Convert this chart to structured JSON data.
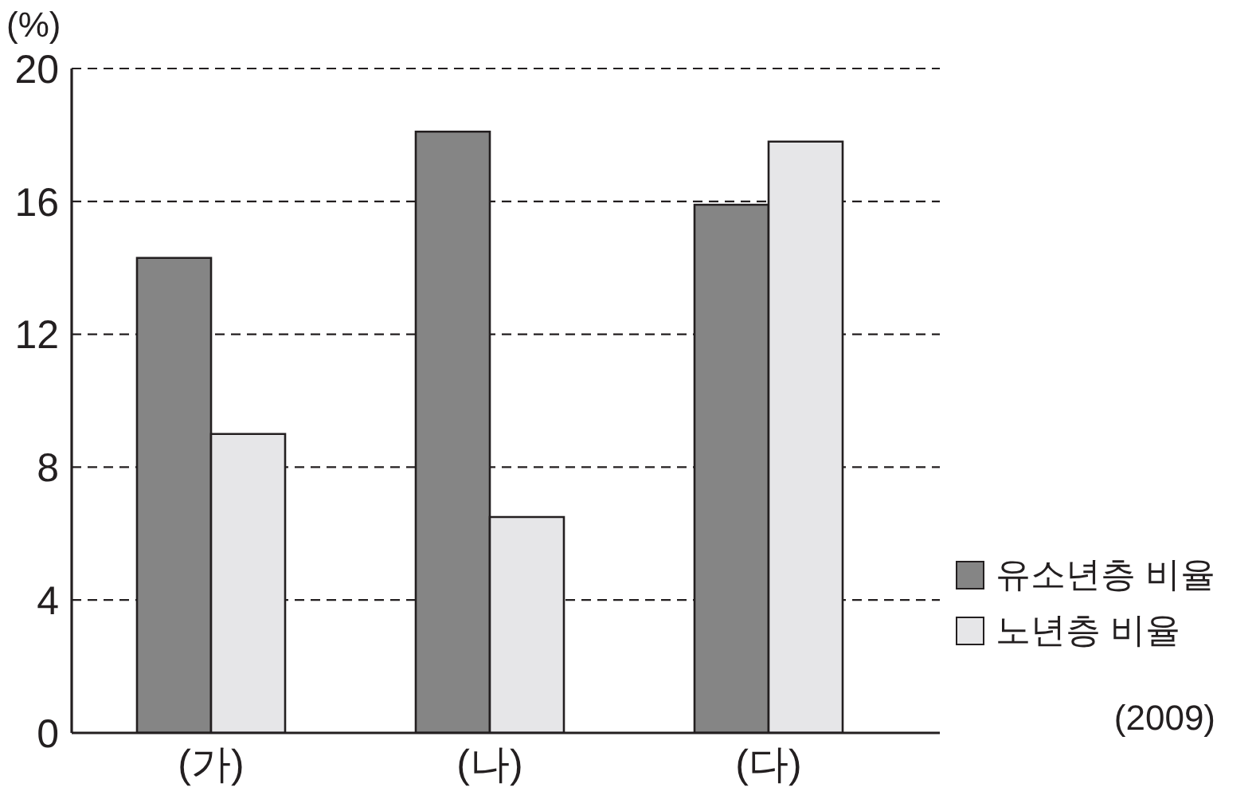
{
  "chart_data": {
    "type": "bar",
    "ylabel": "(%)",
    "categories": [
      "(가)",
      "(나)",
      "(다)"
    ],
    "series": [
      {
        "name": "유소년층 비율",
        "color": "#858585",
        "values": [
          14.3,
          18.1,
          15.9
        ]
      },
      {
        "name": "노년층 비율",
        "color": "#e6e6e8",
        "values": [
          9.0,
          6.5,
          17.8
        ]
      }
    ],
    "ylim": [
      0,
      20
    ],
    "yticks": [
      0,
      4,
      8,
      12,
      16,
      20
    ],
    "grid": "y",
    "legend": "right",
    "annotations": [
      "(2009)"
    ]
  }
}
